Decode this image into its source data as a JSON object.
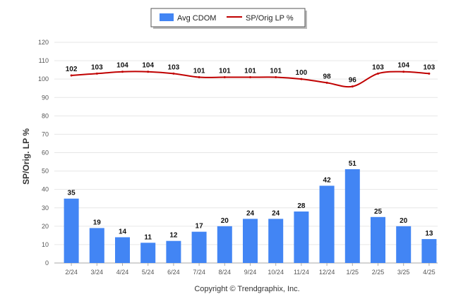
{
  "chart_data": {
    "type": "bar",
    "categories": [
      "2/24",
      "3/24",
      "4/24",
      "5/24",
      "6/24",
      "7/24",
      "8/24",
      "9/24",
      "10/24",
      "11/24",
      "12/24",
      "1/25",
      "2/25",
      "3/25",
      "4/25"
    ],
    "series": [
      {
        "name": "Avg CDOM",
        "type": "bar",
        "color": "#4285f4",
        "values": [
          35,
          19,
          14,
          11,
          12,
          17,
          20,
          24,
          24,
          28,
          42,
          51,
          25,
          20,
          13
        ]
      },
      {
        "name": "SP/Orig LP %",
        "type": "line",
        "color": "#c00000",
        "values": [
          102,
          103,
          104,
          104,
          103,
          101,
          101,
          101,
          101,
          100,
          98,
          96,
          103,
          104,
          103
        ]
      }
    ],
    "ylabel": "SP/Orig. LP %",
    "xlabel": "",
    "ylim": [
      0,
      120
    ],
    "yticks": [
      0,
      10,
      20,
      30,
      40,
      50,
      60,
      70,
      80,
      90,
      100,
      110,
      120
    ],
    "grid": true,
    "legend_position": "top-center"
  },
  "footer": {
    "copyright": "Copyright © Trendgraphix, Inc."
  }
}
